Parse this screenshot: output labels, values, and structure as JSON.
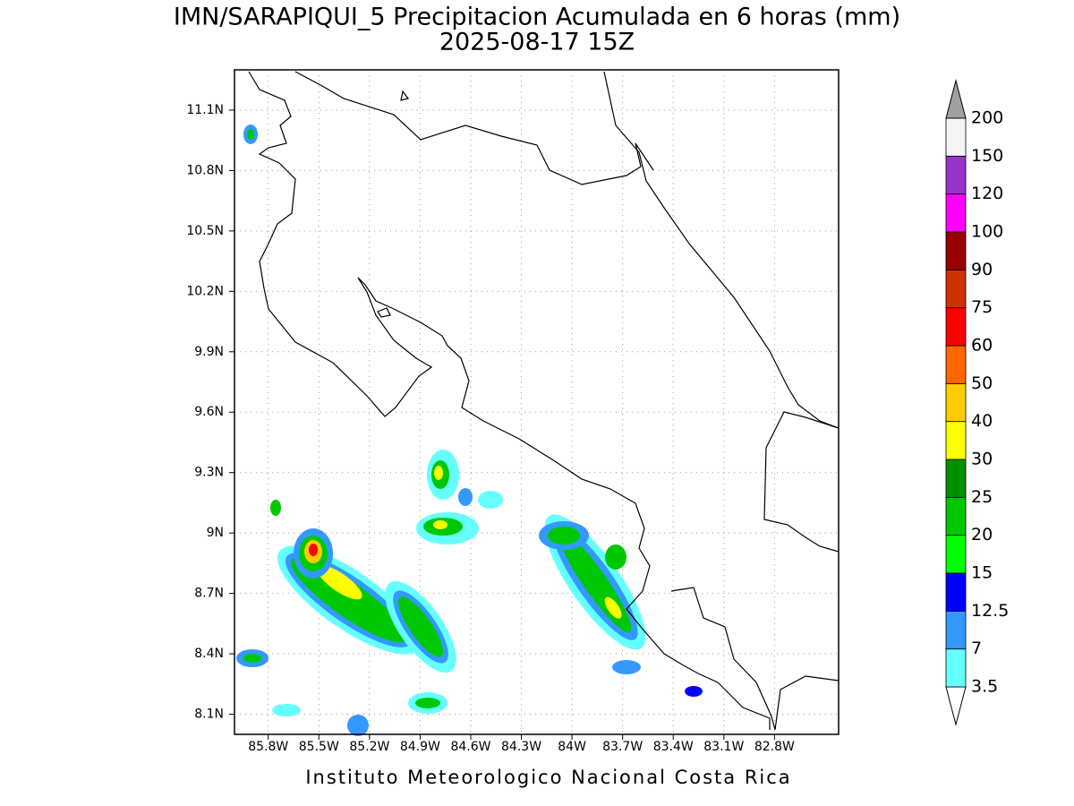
{
  "chart_data": {
    "type": "map",
    "title": "IMN/SARAPIQUI_5 Precipitacion Acumulada en 6 horas (mm)",
    "subtitle": "2025-08-17 15Z",
    "footer": "Instituto Meteorologico Nacional Costa Rica",
    "xlim": [
      -86.0,
      -82.42
    ],
    "ylim": [
      8.0,
      11.3
    ],
    "xticks": [
      {
        "value": -85.8,
        "label": "85.8W"
      },
      {
        "value": -85.5,
        "label": "85.5W"
      },
      {
        "value": -85.2,
        "label": "85.2W"
      },
      {
        "value": -84.9,
        "label": "84.9W"
      },
      {
        "value": -84.6,
        "label": "84.6W"
      },
      {
        "value": -84.3,
        "label": "84.3W"
      },
      {
        "value": -84.0,
        "label": "84W"
      },
      {
        "value": -83.7,
        "label": "83.7W"
      },
      {
        "value": -83.4,
        "label": "83.4W"
      },
      {
        "value": -83.1,
        "label": "83.1W"
      },
      {
        "value": -82.8,
        "label": "82.8W"
      }
    ],
    "yticks": [
      {
        "value": 8.1,
        "label": "8.1N"
      },
      {
        "value": 8.4,
        "label": "8.4N"
      },
      {
        "value": 8.7,
        "label": "8.7N"
      },
      {
        "value": 9.0,
        "label": "9N"
      },
      {
        "value": 9.3,
        "label": "9.3N"
      },
      {
        "value": 9.6,
        "label": "9.6N"
      },
      {
        "value": 9.9,
        "label": "9.9N"
      },
      {
        "value": 10.2,
        "label": "10.2N"
      },
      {
        "value": 10.5,
        "label": "10.5N"
      },
      {
        "value": 10.8,
        "label": "10.8N"
      },
      {
        "value": 11.1,
        "label": "11.1N"
      }
    ],
    "grid": true,
    "colorbar": {
      "levels": [
        3.5,
        7,
        12.5,
        15,
        20,
        25,
        30,
        40,
        50,
        60,
        75,
        90,
        100,
        120,
        150,
        200
      ],
      "colors": [
        "#ffffff",
        "#66ffff",
        "#3399ff",
        "#0000ff",
        "#00ff00",
        "#00c800",
        "#009000",
        "#ffff00",
        "#ffcc00",
        "#ff6600",
        "#ff0000",
        "#cc3300",
        "#990000",
        "#ff00ff",
        "#9933cc",
        "#f5f5f5",
        "#a0a0a0"
      ]
    }
  }
}
